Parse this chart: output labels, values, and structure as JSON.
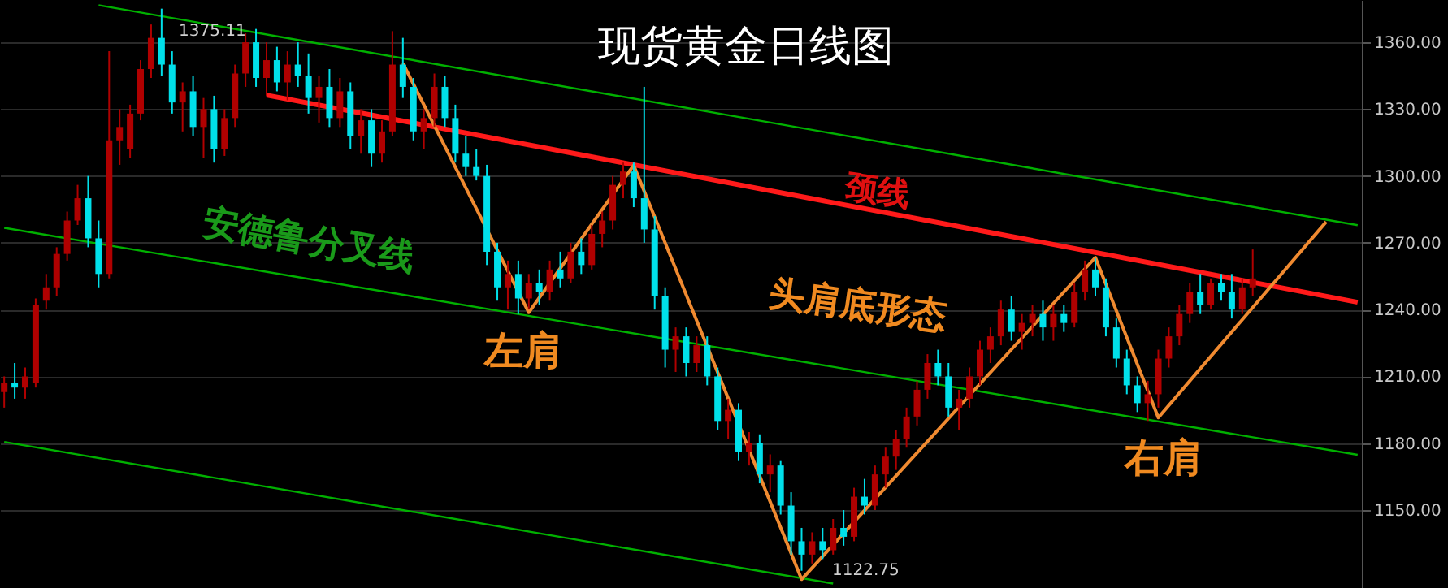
{
  "chart_data": {
    "type": "candlestick",
    "title": "现货黄金日线图",
    "categories": [
      null,
      null,
      null,
      null,
      null,
      null,
      null,
      null,
      null,
      null,
      null,
      null,
      null,
      null,
      null,
      null,
      null,
      null,
      null,
      null,
      null,
      null,
      null,
      null,
      null,
      null,
      null,
      null,
      null,
      null,
      null,
      null,
      null,
      null,
      null,
      null,
      null,
      null,
      null,
      null,
      null,
      null,
      null,
      null,
      null,
      null,
      null,
      null,
      null,
      null,
      null,
      null,
      null,
      null,
      null,
      null,
      null,
      null,
      null,
      null,
      null,
      null,
      null,
      null,
      null,
      null,
      null,
      null,
      null,
      null,
      null,
      null,
      null,
      null,
      null,
      null,
      null,
      null,
      null,
      null,
      null,
      null,
      null,
      null,
      null,
      null,
      null,
      null,
      null,
      null,
      null,
      null,
      null,
      null,
      null,
      null,
      null,
      null,
      null,
      null,
      null,
      null,
      null,
      null,
      null,
      null,
      null,
      null,
      null,
      null,
      null,
      null,
      null,
      null,
      null,
      null,
      null,
      null,
      null,
      null,
      null,
      null,
      null,
      null,
      null,
      null,
      null,
      null,
      null,
      null
    ],
    "ohlc": [
      [
        1203,
        1210,
        1196,
        1207
      ],
      [
        1207,
        1216,
        1200,
        1205
      ],
      [
        1205,
        1214,
        1200,
        1210
      ],
      [
        1207,
        1245,
        1205,
        1242
      ],
      [
        1244,
        1256,
        1240,
        1250
      ],
      [
        1250,
        1268,
        1246,
        1265
      ],
      [
        1265,
        1284,
        1262,
        1280
      ],
      [
        1280,
        1296,
        1278,
        1290
      ],
      [
        1290,
        1300,
        1268,
        1272
      ],
      [
        1272,
        1280,
        1250,
        1256
      ],
      [
        1256,
        1356,
        1254,
        1316
      ],
      [
        1316,
        1330,
        1305,
        1322
      ],
      [
        1312,
        1332,
        1308,
        1328
      ],
      [
        1328,
        1352,
        1325,
        1348
      ],
      [
        1348,
        1368,
        1344,
        1362
      ],
      [
        1362,
        1375.11,
        1345,
        1350
      ],
      [
        1350,
        1356,
        1328,
        1333
      ],
      [
        1333,
        1342,
        1320,
        1338
      ],
      [
        1338,
        1345,
        1318,
        1322
      ],
      [
        1322,
        1335,
        1308,
        1330
      ],
      [
        1330,
        1336,
        1306,
        1312
      ],
      [
        1312,
        1330,
        1309,
        1326
      ],
      [
        1326,
        1350,
        1322,
        1346
      ],
      [
        1346,
        1364,
        1340,
        1360
      ],
      [
        1360,
        1366,
        1340,
        1344
      ],
      [
        1344,
        1360,
        1336,
        1352
      ],
      [
        1352,
        1358,
        1338,
        1342
      ],
      [
        1342,
        1356,
        1334,
        1350
      ],
      [
        1350,
        1360,
        1340,
        1345
      ],
      [
        1345,
        1355,
        1328,
        1335
      ],
      [
        1335,
        1345,
        1324,
        1340
      ],
      [
        1340,
        1348,
        1322,
        1326
      ],
      [
        1326,
        1344,
        1322,
        1338
      ],
      [
        1338,
        1342,
        1312,
        1318
      ],
      [
        1318,
        1330,
        1310,
        1325
      ],
      [
        1325,
        1330,
        1304,
        1310
      ],
      [
        1310,
        1325,
        1306,
        1320
      ],
      [
        1320,
        1365,
        1318,
        1350
      ],
      [
        1350,
        1362,
        1335,
        1340
      ],
      [
        1340,
        1344,
        1316,
        1320
      ],
      [
        1320,
        1330,
        1312,
        1326
      ],
      [
        1326,
        1346,
        1322,
        1340
      ],
      [
        1340,
        1345,
        1322,
        1326
      ],
      [
        1326,
        1332,
        1306,
        1310
      ],
      [
        1310,
        1318,
        1300,
        1304
      ],
      [
        1304,
        1312,
        1298,
        1300
      ],
      [
        1300,
        1305,
        1260,
        1266
      ],
      [
        1266,
        1270,
        1244,
        1250
      ],
      [
        1250,
        1262,
        1240,
        1256
      ],
      [
        1256,
        1262,
        1238,
        1245
      ],
      [
        1245,
        1256,
        1240,
        1252
      ],
      [
        1252,
        1258,
        1242,
        1248
      ],
      [
        1248,
        1262,
        1244,
        1258
      ],
      [
        1258,
        1266,
        1250,
        1254
      ],
      [
        1254,
        1270,
        1252,
        1266
      ],
      [
        1266,
        1272,
        1256,
        1260
      ],
      [
        1260,
        1278,
        1258,
        1274
      ],
      [
        1274,
        1284,
        1268,
        1280
      ],
      [
        1280,
        1300,
        1276,
        1296
      ],
      [
        1296,
        1306,
        1290,
        1302
      ],
      [
        1302,
        1306,
        1286,
        1290
      ],
      [
        1290,
        1340,
        1270,
        1276
      ],
      [
        1276,
        1282,
        1240,
        1246
      ],
      [
        1246,
        1250,
        1214,
        1222
      ],
      [
        1222,
        1232,
        1212,
        1228
      ],
      [
        1228,
        1232,
        1210,
        1216
      ],
      [
        1216,
        1228,
        1212,
        1224
      ],
      [
        1224,
        1228,
        1206,
        1210
      ],
      [
        1210,
        1214,
        1186,
        1190
      ],
      [
        1190,
        1200,
        1182,
        1195
      ],
      [
        1195,
        1198,
        1172,
        1176
      ],
      [
        1176,
        1185,
        1170,
        1180
      ],
      [
        1180,
        1184,
        1162,
        1166
      ],
      [
        1166,
        1175,
        1158,
        1170
      ],
      [
        1170,
        1172,
        1148,
        1152
      ],
      [
        1152,
        1158,
        1130,
        1136
      ],
      [
        1136,
        1142,
        1122.75,
        1130
      ],
      [
        1130,
        1140,
        1126,
        1136
      ],
      [
        1136,
        1142,
        1128,
        1132
      ],
      [
        1132,
        1146,
        1130,
        1142
      ],
      [
        1142,
        1150,
        1134,
        1138
      ],
      [
        1138,
        1160,
        1136,
        1156
      ],
      [
        1156,
        1164,
        1148,
        1152
      ],
      [
        1152,
        1170,
        1150,
        1166
      ],
      [
        1166,
        1178,
        1160,
        1174
      ],
      [
        1174,
        1186,
        1168,
        1182
      ],
      [
        1182,
        1196,
        1178,
        1192
      ],
      [
        1192,
        1208,
        1188,
        1204
      ],
      [
        1204,
        1220,
        1200,
        1216
      ],
      [
        1216,
        1222,
        1206,
        1210
      ],
      [
        1210,
        1216,
        1192,
        1196
      ],
      [
        1196,
        1204,
        1186,
        1200
      ],
      [
        1200,
        1214,
        1196,
        1210
      ],
      [
        1210,
        1226,
        1206,
        1222
      ],
      [
        1222,
        1232,
        1216,
        1228
      ],
      [
        1228,
        1244,
        1224,
        1240
      ],
      [
        1240,
        1246,
        1226,
        1230
      ],
      [
        1230,
        1238,
        1222,
        1234
      ],
      [
        1234,
        1242,
        1228,
        1238
      ],
      [
        1238,
        1244,
        1226,
        1232
      ],
      [
        1232,
        1242,
        1226,
        1238
      ],
      [
        1238,
        1242,
        1230,
        1234
      ],
      [
        1234,
        1252,
        1232,
        1248
      ],
      [
        1248,
        1262,
        1244,
        1258
      ],
      [
        1258,
        1263,
        1246,
        1250
      ],
      [
        1250,
        1254,
        1228,
        1232
      ],
      [
        1232,
        1236,
        1214,
        1218
      ],
      [
        1218,
        1222,
        1202,
        1206
      ],
      [
        1206,
        1210,
        1194,
        1198
      ],
      [
        1198,
        1208,
        1190,
        1202
      ],
      [
        1202,
        1222,
        1196,
        1218
      ],
      [
        1218,
        1232,
        1214,
        1228
      ],
      [
        1228,
        1242,
        1224,
        1238
      ],
      [
        1238,
        1252,
        1234,
        1248
      ],
      [
        1248,
        1256,
        1238,
        1242
      ],
      [
        1242,
        1254,
        1240,
        1252
      ],
      [
        1252,
        1256,
        1244,
        1248
      ],
      [
        1248,
        1256,
        1236,
        1240
      ],
      [
        1240,
        1254,
        1238,
        1250
      ],
      [
        1250,
        1267,
        1246,
        1254
      ],
      null,
      null,
      null,
      null,
      null,
      null,
      null,
      null,
      null,
      null
    ],
    "colors": [
      "#b00000",
      "#00e0ea",
      "#b00000",
      "#b00000",
      "#b00000",
      "#b00000",
      "#b00000",
      "#b00000",
      "#00e0ea",
      "#00e0ea",
      "#b00000",
      "#b00000",
      "#b00000",
      "#b00000",
      "#b00000",
      "#00e0ea",
      "#00e0ea",
      "#b00000",
      "#00e0ea",
      "#b00000",
      "#00e0ea",
      "#b00000",
      "#b00000",
      "#b00000",
      "#00e0ea",
      "#b00000",
      "#00e0ea",
      "#b00000",
      "#00e0ea",
      "#00e0ea",
      "#b00000",
      "#00e0ea",
      "#b00000",
      "#00e0ea",
      "#b00000",
      "#00e0ea",
      "#b00000",
      "#b00000",
      "#00e0ea",
      "#00e0ea",
      "#b00000",
      "#b00000",
      "#00e0ea",
      "#00e0ea",
      "#00e0ea",
      "#00e0ea",
      "#00e0ea",
      "#00e0ea",
      "#b00000",
      "#00e0ea",
      "#b00000",
      "#00e0ea",
      "#b00000",
      "#00e0ea",
      "#b00000",
      "#00e0ea",
      "#b00000",
      "#b00000",
      "#b00000",
      "#b00000",
      "#00e0ea",
      "#00e0ea",
      "#00e0ea",
      "#00e0ea",
      "#b00000",
      "#00e0ea",
      "#b00000",
      "#00e0ea",
      "#00e0ea",
      "#b00000",
      "#00e0ea",
      "#b00000",
      "#00e0ea",
      "#b00000",
      "#00e0ea",
      "#00e0ea",
      "#00e0ea",
      "#b00000",
      "#00e0ea",
      "#b00000",
      "#00e0ea",
      "#b00000",
      "#00e0ea",
      "#b00000",
      "#b00000",
      "#b00000",
      "#b00000",
      "#b00000",
      "#b00000",
      "#00e0ea",
      "#00e0ea",
      "#b00000",
      "#b00000",
      "#b00000",
      "#b00000",
      "#b00000",
      "#00e0ea",
      "#b00000",
      "#b00000",
      "#00e0ea",
      "#b00000",
      "#00e0ea",
      "#b00000",
      "#b00000",
      "#00e0ea",
      "#00e0ea",
      "#00e0ea",
      "#00e0ea",
      "#00e0ea",
      "#b00000",
      "#b00000",
      "#b00000",
      "#b00000",
      "#b00000",
      "#00e0ea",
      "#b00000",
      "#00e0ea",
      "#00e0ea",
      "#b00000",
      "#b00000",
      null,
      null,
      null,
      null,
      null,
      null,
      null,
      null,
      null,
      null
    ],
    "series": [
      {
        "type": "line",
        "color": "#00b000",
        "values": [
          null,
          null,
          null,
          null,
          null,
          null,
          null,
          null,
          null,
          1376.7,
          null,
          null,
          null,
          null,
          null,
          null,
          null,
          null,
          null,
          null,
          null,
          null,
          null,
          null,
          null,
          null,
          null,
          null,
          null,
          null,
          null,
          null,
          null,
          null,
          null,
          null,
          null,
          null,
          null,
          null,
          null,
          null,
          null,
          null,
          null,
          null,
          null,
          null,
          null,
          null,
          null,
          null,
          null,
          null,
          null,
          null,
          null,
          null,
          null,
          null,
          null,
          null,
          null,
          null,
          null,
          null,
          null,
          null,
          null,
          null,
          null,
          null,
          null,
          null,
          null,
          null,
          null,
          null,
          null,
          null,
          null,
          null,
          null,
          null,
          null,
          null,
          null,
          null,
          null,
          null,
          null,
          null,
          null,
          null,
          null,
          null,
          null,
          null,
          null,
          null,
          null,
          null,
          null,
          null,
          null,
          null,
          null,
          null,
          null,
          null,
          null,
          null,
          null,
          null,
          null,
          null,
          null,
          null,
          null,
          null,
          null,
          null,
          null,
          null,
          null,
          null,
          null,
          null,
          null,
          1277.9
        ]
      },
      {
        "type": "line",
        "color": "#00b000",
        "values": [
          1276.7,
          null,
          null,
          null,
          null,
          null,
          null,
          null,
          null,
          null,
          null,
          null,
          null,
          null,
          null,
          null,
          null,
          null,
          null,
          null,
          null,
          null,
          null,
          null,
          null,
          null,
          null,
          null,
          null,
          null,
          null,
          null,
          null,
          null,
          null,
          null,
          null,
          null,
          null,
          null,
          null,
          null,
          null,
          null,
          null,
          null,
          null,
          null,
          null,
          null,
          null,
          null,
          null,
          null,
          null,
          null,
          null,
          null,
          null,
          null,
          null,
          null,
          null,
          null,
          null,
          null,
          null,
          null,
          null,
          null,
          null,
          null,
          null,
          null,
          null,
          null,
          null,
          null,
          null,
          null,
          null,
          null,
          null,
          null,
          null,
          null,
          null,
          null,
          null,
          null,
          null,
          null,
          null,
          null,
          null,
          null,
          null,
          null,
          null,
          null,
          null,
          null,
          null,
          null,
          null,
          null,
          null,
          null,
          null,
          null,
          null,
          null,
          null,
          null,
          null,
          null,
          null,
          null,
          null,
          null,
          null,
          null,
          null,
          null,
          null,
          null,
          null,
          null,
          null,
          1174.8
        ]
      },
      {
        "type": "line",
        "color": "#00b000",
        "values": [
          1180.6,
          null,
          null,
          null,
          null,
          null,
          null,
          null,
          null,
          null,
          null,
          null,
          null,
          null,
          null,
          null,
          null,
          null,
          null,
          null,
          null,
          null,
          null,
          null,
          null,
          null,
          null,
          null,
          null,
          null,
          null,
          null,
          null,
          null,
          null,
          null,
          null,
          null,
          null,
          null,
          null,
          null,
          null,
          null,
          null,
          null,
          null,
          null,
          null,
          null,
          null,
          null,
          null,
          null,
          null,
          null,
          null,
          null,
          null,
          null,
          null,
          null,
          null,
          null,
          null,
          null,
          null,
          null,
          null,
          null,
          null,
          null,
          null,
          null,
          null,
          null,
          null,
          null,
          null,
          1117,
          null,
          null,
          null,
          null,
          null,
          null,
          null,
          null,
          null,
          null,
          null,
          null,
          null,
          null,
          null,
          null,
          null,
          null,
          null,
          null,
          null,
          null,
          null,
          null,
          null,
          null,
          null,
          null,
          null,
          null,
          null,
          null,
          null,
          null,
          null,
          null,
          null,
          null,
          null,
          null,
          null,
          null,
          null,
          null,
          null,
          null,
          null,
          null,
          null,
          null
        ]
      },
      {
        "type": "line",
        "color": "#ff1a1a",
        "values": [
          null,
          null,
          null,
          null,
          null,
          null,
          null,
          null,
          null,
          null,
          null,
          null,
          null,
          null,
          null,
          null,
          null,
          null,
          null,
          null,
          null,
          null,
          null,
          null,
          null,
          1336.3,
          null,
          null,
          null,
          null,
          null,
          null,
          null,
          null,
          null,
          null,
          null,
          null,
          null,
          null,
          null,
          null,
          null,
          null,
          null,
          null,
          null,
          null,
          null,
          null,
          null,
          null,
          null,
          null,
          null,
          null,
          null,
          null,
          null,
          null,
          null,
          null,
          null,
          null,
          null,
          null,
          null,
          null,
          null,
          null,
          null,
          null,
          null,
          null,
          null,
          null,
          null,
          null,
          null,
          null,
          null,
          null,
          null,
          null,
          null,
          null,
          null,
          null,
          null,
          null,
          null,
          null,
          null,
          null,
          null,
          null,
          null,
          null,
          null,
          null,
          null,
          null,
          null,
          null,
          null,
          null,
          null,
          null,
          null,
          null,
          null,
          null,
          null,
          null,
          null,
          null,
          null,
          null,
          null,
          null,
          null,
          null,
          null,
          null,
          null,
          null,
          null,
          null,
          null,
          1243.3
        ]
      },
      {
        "type": "line",
        "color": "#f08a30",
        "values": [
          null,
          null,
          null,
          null,
          null,
          null,
          null,
          null,
          null,
          null,
          null,
          null,
          null,
          null,
          null,
          null,
          null,
          null,
          null,
          null,
          null,
          null,
          null,
          null,
          null,
          null,
          null,
          null,
          null,
          null,
          null,
          null,
          null,
          null,
          null,
          null,
          null,
          null,
          1350.6,
          null,
          null,
          null,
          null,
          null,
          null,
          null,
          null,
          null,
          null,
          null,
          1238.7,
          null,
          null,
          null,
          null,
          null,
          null,
          null,
          null,
          null,
          1304.8,
          null,
          null,
          null,
          null,
          null,
          null,
          null,
          null,
          null,
          null,
          null,
          null,
          null,
          null,
          null,
          1118.9,
          null,
          null,
          null,
          null,
          null,
          null,
          null,
          null,
          null,
          null,
          null,
          null,
          null,
          null,
          null,
          null,
          null,
          null,
          null,
          null,
          null,
          null,
          null,
          null,
          null,
          null,
          null,
          1263.4,
          null,
          null,
          null,
          null,
          null,
          1191.5,
          null,
          null,
          null,
          null,
          null,
          null,
          null,
          null,
          null,
          null,
          null,
          null,
          null,
          null,
          null,
          1279.4,
          null,
          null,
          null
        ]
      }
    ],
    "ylim": [
      1115,
      1379
    ],
    "yticks": [
      {
        "value": 1150,
        "label": "1150.00"
      },
      {
        "value": 1180,
        "label": "1180.00"
      },
      {
        "value": 1210,
        "label": "1210.00"
      },
      {
        "value": 1240,
        "label": "1240.00"
      },
      {
        "value": 1270,
        "label": "1270.00"
      },
      {
        "value": 1300,
        "label": "1300.00"
      },
      {
        "value": 1330,
        "label": "1330.00"
      },
      {
        "value": 1360,
        "label": "1360.00"
      }
    ],
    "grid": "y",
    "annotations": [
      "安德鲁分叉线",
      "颈线",
      "头肩底形态",
      "左肩",
      "右肩",
      "1375.11",
      "1122.75"
    ]
  }
}
